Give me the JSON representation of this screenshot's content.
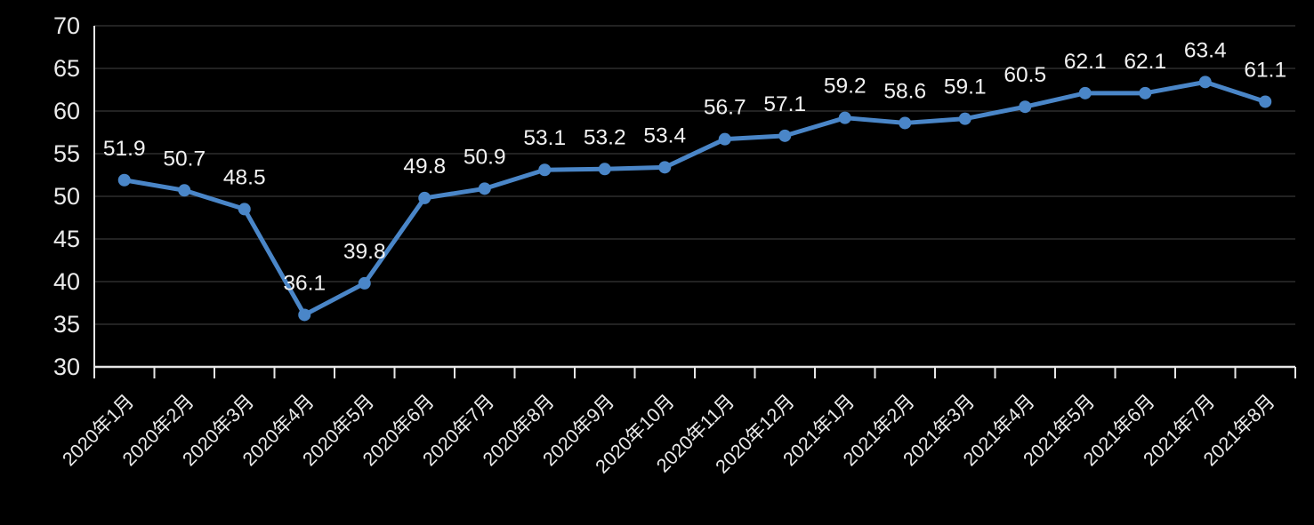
{
  "chart_data": {
    "type": "line",
    "categories": [
      "2020年1月",
      "2020年2月",
      "2020年3月",
      "2020年4月",
      "2020年5月",
      "2020年6月",
      "2020年7月",
      "2020年8月",
      "2020年9月",
      "2020年10月",
      "2020年11月",
      "2020年12月",
      "2021年1月",
      "2021年2月",
      "2021年3月",
      "2021年4月",
      "2021年5月",
      "2021年6月",
      "2021年7月",
      "2021年8月"
    ],
    "values": [
      51.9,
      50.7,
      48.5,
      36.1,
      39.8,
      49.8,
      50.9,
      53.1,
      53.2,
      53.4,
      56.7,
      57.1,
      59.2,
      58.6,
      59.1,
      60.5,
      62.1,
      62.1,
      63.4,
      61.1
    ],
    "data_labels": [
      "51.9",
      "50.7",
      "48.5",
      "36.1",
      "39.8",
      "49.8",
      "50.9",
      "53.1",
      "53.2",
      "53.4",
      "56.7",
      "57.1",
      "59.2",
      "58.6",
      "59.1",
      "60.5",
      "62.1",
      "62.1",
      "63.4",
      "61.1"
    ],
    "ylim": [
      30,
      70
    ],
    "yticks": [
      30,
      35,
      40,
      45,
      50,
      55,
      60,
      65,
      70
    ],
    "ytick_labels": [
      "30",
      "35",
      "40",
      "45",
      "50",
      "55",
      "60",
      "65",
      "70"
    ],
    "grid": true,
    "legend": "none",
    "x_label_rotation": -45,
    "colors": {
      "background": "#000000",
      "line": "#4a86c8",
      "marker": "#4a86c8",
      "data_label": "#f2f2f2",
      "axis": "#e6e6e6",
      "tick_label": "#ebebeb",
      "gridline": "#2d2d2d"
    }
  }
}
